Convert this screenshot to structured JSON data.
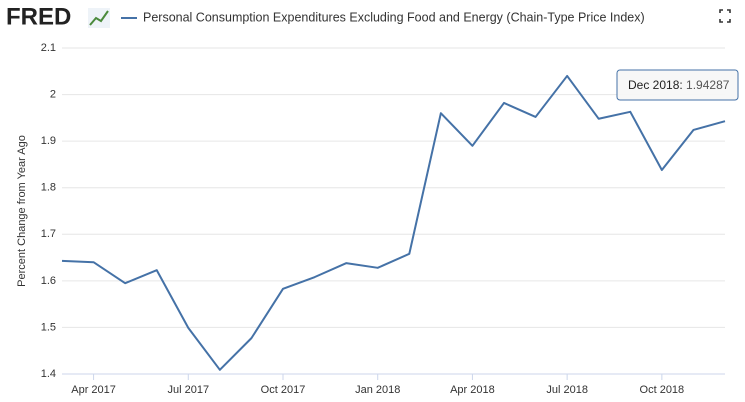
{
  "logo": "FRED",
  "tooltip_label": "Dec 2018:",
  "chart_data": {
    "type": "line",
    "title": "Personal Consumption Expenditures Excluding Food and Energy (Chain-Type Price Index)",
    "y_label": "Percent Change from Year Ago",
    "x": [
      "Mar 2017",
      "Apr 2017",
      "May 2017",
      "Jun 2017",
      "Jul 2017",
      "Aug 2017",
      "Sep 2017",
      "Oct 2017",
      "Nov 2017",
      "Dec 2017",
      "Jan 2018",
      "Feb 2018",
      "Mar 2018",
      "Apr 2018",
      "May 2018",
      "Jun 2018",
      "Jul 2018",
      "Aug 2018",
      "Sep 2018",
      "Oct 2018",
      "Nov 2018",
      "Dec 2018"
    ],
    "xticks": [
      "Apr 2017",
      "Jul 2017",
      "Oct 2017",
      "Jan 2018",
      "Apr 2018",
      "Jul 2018",
      "Oct 2018"
    ],
    "series": [
      {
        "name": "Personal Consumption Expenditures Excluding Food and Energy (Chain-Type Price Index)",
        "color": "#4572a7",
        "values": [
          1.643,
          1.64,
          1.595,
          1.623,
          1.499,
          1.409,
          1.477,
          1.583,
          1.608,
          1.638,
          1.628,
          1.658,
          1.96,
          1.89,
          1.982,
          1.952,
          2.04,
          1.948,
          1.963,
          1.838,
          1.924,
          1.94287
        ]
      }
    ],
    "ylim": [
      1.4,
      2.1
    ],
    "yticks": [
      1.4,
      1.5,
      1.6,
      1.7,
      1.8,
      1.9,
      2.0,
      2.1
    ],
    "grid": true
  }
}
